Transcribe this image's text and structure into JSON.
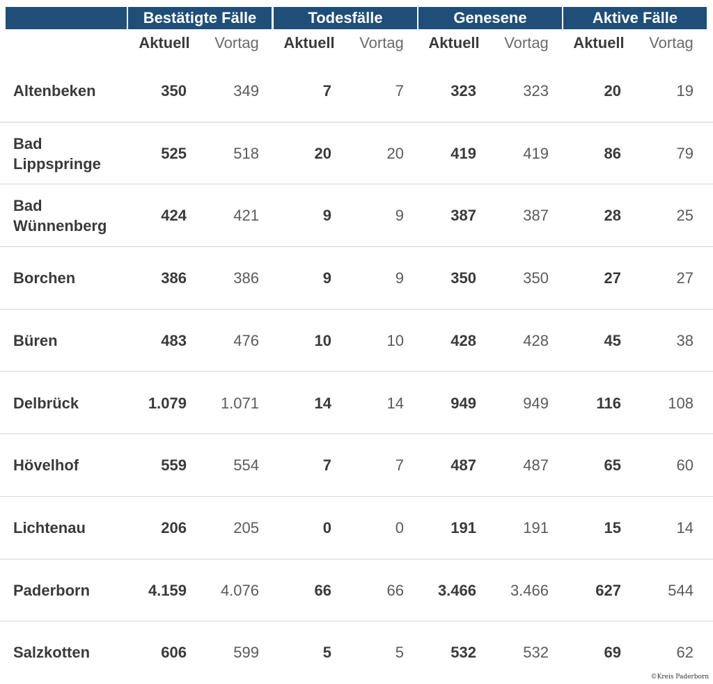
{
  "chart_data": {
    "type": "table",
    "column_groups": [
      "Bestätigte Fälle",
      "Todesfälle",
      "Genesene",
      "Aktive Fälle"
    ],
    "sub_columns": [
      "Aktuell",
      "Vortag"
    ],
    "rows": [
      {
        "name": "Altenbeken",
        "values": [
          "350",
          "349",
          "7",
          "7",
          "323",
          "323",
          "20",
          "19"
        ]
      },
      {
        "name": "Bad Lippspringe",
        "values": [
          "525",
          "518",
          "20",
          "20",
          "419",
          "419",
          "86",
          "79"
        ]
      },
      {
        "name": "Bad Wünnenberg",
        "values": [
          "424",
          "421",
          "9",
          "9",
          "387",
          "387",
          "28",
          "25"
        ]
      },
      {
        "name": "Borchen",
        "values": [
          "386",
          "386",
          "9",
          "9",
          "350",
          "350",
          "27",
          "27"
        ]
      },
      {
        "name": "Büren",
        "values": [
          "483",
          "476",
          "10",
          "10",
          "428",
          "428",
          "45",
          "38"
        ]
      },
      {
        "name": "Delbrück",
        "values": [
          "1.079",
          "1.071",
          "14",
          "14",
          "949",
          "949",
          "116",
          "108"
        ]
      },
      {
        "name": "Hövelhof",
        "values": [
          "559",
          "554",
          "7",
          "7",
          "487",
          "487",
          "65",
          "60"
        ]
      },
      {
        "name": "Lichtenau",
        "values": [
          "206",
          "205",
          "0",
          "0",
          "191",
          "191",
          "15",
          "14"
        ]
      },
      {
        "name": "Paderborn",
        "values": [
          "4.159",
          "4.076",
          "66",
          "66",
          "3.466",
          "3.466",
          "627",
          "544"
        ]
      },
      {
        "name": "Salzkotten",
        "values": [
          "606",
          "599",
          "5",
          "5",
          "532",
          "532",
          "69",
          "62"
        ]
      }
    ],
    "header_color": "#1f4e79"
  },
  "credit": "©Kreis Paderborn"
}
